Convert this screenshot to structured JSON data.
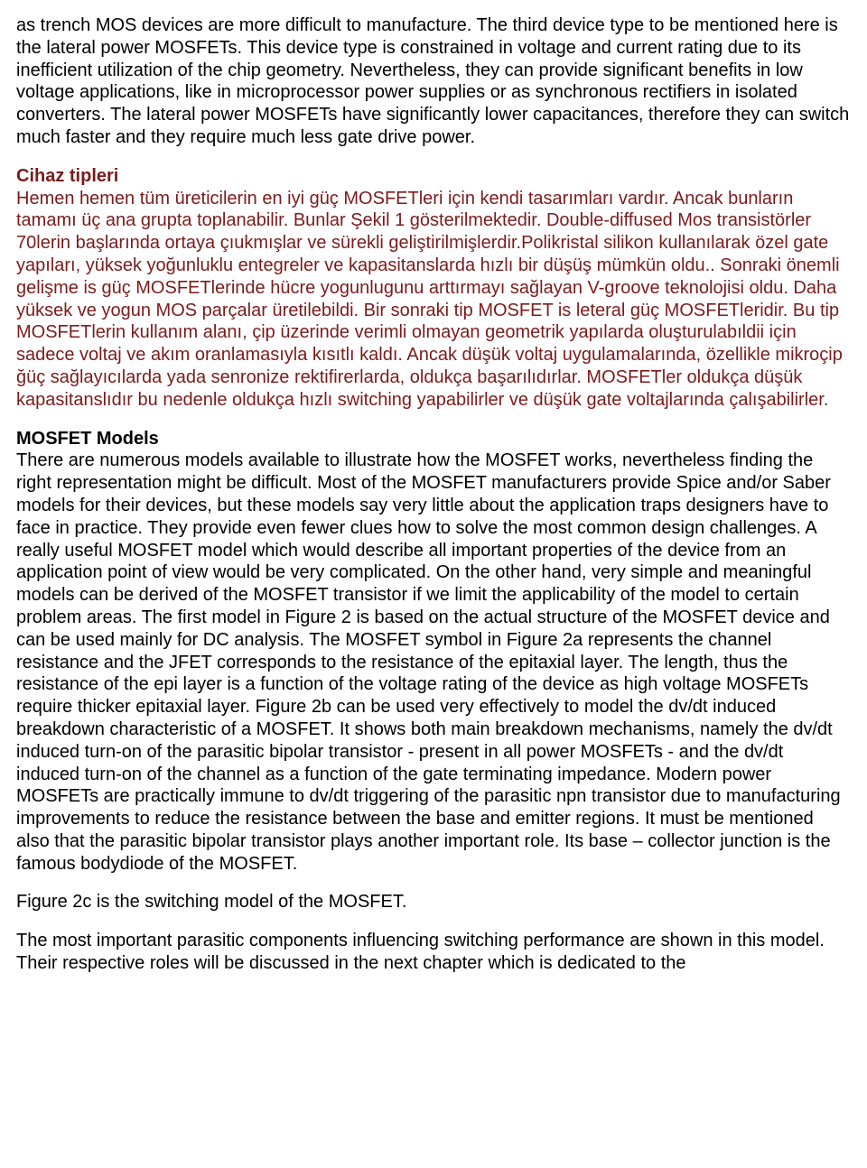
{
  "para1": "as trench MOS devices are more difficult to manufacture. The third device type to be mentioned here is the lateral power MOSFETs. This device type is constrained in voltage and current rating due to its inefficient utilization of the chip geometry. Nevertheless, they can provide significant benefits in low voltage applications, like in microprocessor power supplies or as synchronous rectifiers in isolated converters. The lateral power MOSFETs have significantly lower capacitances, therefore they can switch much faster and they require much less gate drive power.",
  "heading1": "Cihaz tipleri",
  "para2": "Hemen hemen tüm üreticilerin en iyi güç MOSFETleri için kendi tasarımları vardır. Ancak bunların tamamı üç ana grupta toplanabilir. Bunlar Şekil 1 gösterilmektedir. Double-diffused Mos transistörler 70lerin başlarında ortaya çıukmışlar ve sürekli geliştirilmişlerdir.Polikristal silikon kullanılarak özel gate yapıları, yüksek yoğunluklu entegreler ve kapasitanslarda hızlı bir düşüş mümkün oldu..  Sonraki önemli gelişme is güç MOSFETlerinde hücre yogunlugunu arttırmayı sağlayan  V-groove teknolojisi oldu. Daha yüksek ve yogun MOS parçalar üretilebildi. Bir sonraki tip MOSFET is leteral güç MOSFETleridir. Bu tip MOSFETlerin kullanım alanı, çip üzerinde verimli olmayan geometrik yapılarda oluşturulabıldii için sadece voltaj ve akım oranlamasıyla kısıtlı kaldı. Ancak  düşük voltaj uygulamalarında, özellikle mikroçip ğüç sağlayıcılarda yada senronize rektifirerlarda,  oldukça başarılıdırlar. MOSFETler oldukça düşük kapasitanslıdır bu nedenle oldukça hızlı switching yapabilirler ve düşük gate voltajlarında çalışabilirler.",
  "heading2": "MOSFET Models",
  "para3": "There are numerous models available to illustrate how the MOSFET works, nevertheless finding the right representation might be difficult. Most of the MOSFET manufacturers provide Spice and/or Saber models for their devices, but these models say very little about the application traps designers have to face in practice. They provide even fewer clues how to solve the most common design challenges. A really useful MOSFET model which would describe all important properties of the device from an application point of view would be very complicated. On the other hand, very simple and meaningful models can be derived of the MOSFET transistor if we limit the applicability of the model to certain problem areas. The first model in Figure 2 is based on the actual structure of the MOSFET device and can be used mainly for DC analysis. The MOSFET symbol in Figure 2a represents the channel resistance and the JFET corresponds to the resistance of the epitaxial layer. The length, thus the resistance of the epi layer is a function of the voltage rating of the device as high voltage MOSFETs require thicker epitaxial layer. Figure 2b can be used very effectively to model the dv/dt induced breakdown characteristic of a MOSFET. It shows both main breakdown mechanisms, namely the dv/dt induced turn-on of the parasitic bipolar transistor - present in all power MOSFETs - and the dv/dt induced turn-on of the channel as a function of the gate terminating impedance. Modern power MOSFETs are practically immune to dv/dt triggering of the parasitic npn transistor due to manufacturing improvements to reduce the resistance between the base and emitter regions. It must be mentioned also that the parasitic bipolar transistor plays another important role. Its base – collector junction is the famous bodydiode of the MOSFET.",
  "para4": "Figure 2c is the switching model of the MOSFET.",
  "para5": "The most important parasitic components influencing switching performance are shown in this model. Their respective roles will be discussed in the next chapter which is dedicated to the"
}
